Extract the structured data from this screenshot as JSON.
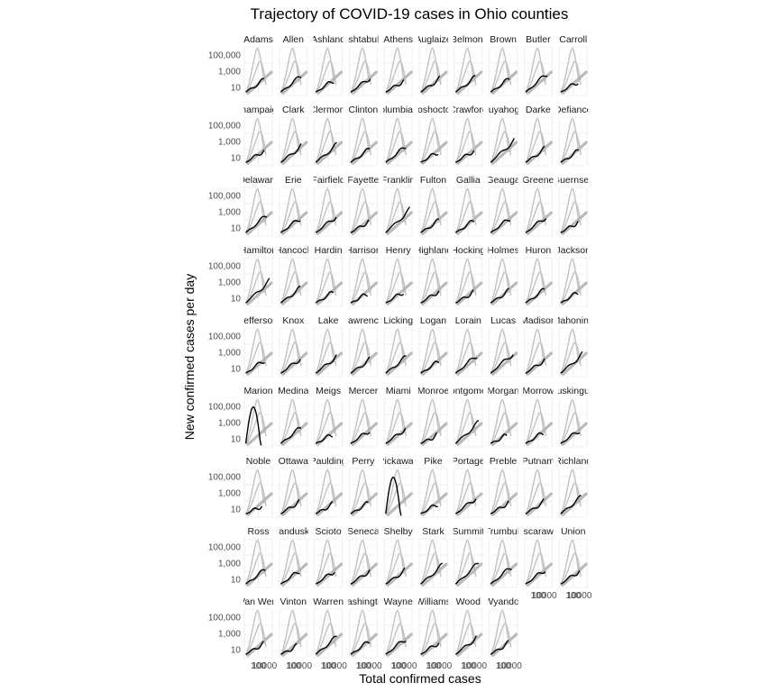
{
  "chart_data": {
    "type": "line",
    "title": "Trajectory of COVID-19 cases in Ohio counties",
    "xlabel": "Total confirmed cases",
    "ylabel": "New confirmed cases per day",
    "x_scale": "log",
    "y_scale": "log",
    "y_ticks": [
      "100,000",
      "1,000",
      "10"
    ],
    "y_tick_values": [
      100000,
      1000,
      10
    ],
    "x_tick_label": "10000",
    "x_tick_label_edge": "100",
    "xlim": [
      1,
      100000
    ],
    "ylim": [
      1,
      1000000
    ],
    "facet_cols": 10,
    "facets": [
      {
        "label": "Adams",
        "end": 0.45
      },
      {
        "label": "Allen",
        "end": 0.6
      },
      {
        "label": "Ashland",
        "end": 0.45
      },
      {
        "label": "Ashtabula",
        "end": 0.55
      },
      {
        "label": "Athens",
        "end": 0.42
      },
      {
        "label": "Auglaize",
        "end": 0.5
      },
      {
        "label": "Belmont",
        "end": 0.55
      },
      {
        "label": "Brown",
        "end": 0.5
      },
      {
        "label": "Butler",
        "end": 0.7
      },
      {
        "label": "Carroll",
        "end": 0.4
      },
      {
        "label": "Champaign",
        "end": 0.45
      },
      {
        "label": "Clark",
        "end": 0.6
      },
      {
        "label": "Clermont",
        "end": 0.65
      },
      {
        "label": "Clinton",
        "end": 0.5
      },
      {
        "label": "Columbiana",
        "end": 0.6
      },
      {
        "label": "Coshocton",
        "end": 0.4
      },
      {
        "label": "Crawford",
        "end": 0.45
      },
      {
        "label": "Cuyahoga",
        "end": 0.82
      },
      {
        "label": "Darke",
        "end": 0.5
      },
      {
        "label": "Defiance",
        "end": 0.42
      },
      {
        "label": "Delaware",
        "end": 0.65
      },
      {
        "label": "Erie",
        "end": 0.55
      },
      {
        "label": "Fairfield",
        "end": 0.62
      },
      {
        "label": "Fayette",
        "end": 0.42
      },
      {
        "label": "Franklin",
        "end": 0.85
      },
      {
        "label": "Fulton",
        "end": 0.45
      },
      {
        "label": "Gallia",
        "end": 0.45
      },
      {
        "label": "Geauga",
        "end": 0.55
      },
      {
        "label": "Greene",
        "end": 0.6
      },
      {
        "label": "Guernsey",
        "end": 0.4
      },
      {
        "label": "Hamilton",
        "end": 0.82
      },
      {
        "label": "Hancock",
        "end": 0.55
      },
      {
        "label": "Hardin",
        "end": 0.4
      },
      {
        "label": "Harrison",
        "end": 0.35
      },
      {
        "label": "Henry",
        "end": 0.42
      },
      {
        "label": "Highland",
        "end": 0.45
      },
      {
        "label": "Hocking",
        "end": 0.4
      },
      {
        "label": "Holmes",
        "end": 0.45
      },
      {
        "label": "Huron",
        "end": 0.5
      },
      {
        "label": "Jackson",
        "end": 0.4
      },
      {
        "label": "Jefferson",
        "end": 0.5
      },
      {
        "label": "Knox",
        "end": 0.55
      },
      {
        "label": "Lake",
        "end": 0.62
      },
      {
        "label": "Lawrence",
        "end": 0.5
      },
      {
        "label": "Licking",
        "end": 0.6
      },
      {
        "label": "Logan",
        "end": 0.45
      },
      {
        "label": "Lorain",
        "end": 0.68
      },
      {
        "label": "Lucas",
        "end": 0.75
      },
      {
        "label": "Madison",
        "end": 0.5
      },
      {
        "label": "Mahoning",
        "end": 0.7
      },
      {
        "label": "Marion",
        "end": 0.6
      },
      {
        "label": "Medina",
        "end": 0.6
      },
      {
        "label": "Meigs",
        "end": 0.35
      },
      {
        "label": "Mercer",
        "end": 0.5
      },
      {
        "label": "Miami",
        "end": 0.55
      },
      {
        "label": "Monroe",
        "end": 0.3
      },
      {
        "label": "Montgomery",
        "end": 0.78
      },
      {
        "label": "Morgan",
        "end": 0.3
      },
      {
        "label": "Morrow",
        "end": 0.42
      },
      {
        "label": "Muskingum",
        "end": 0.5
      },
      {
        "label": "Noble",
        "end": 0.3
      },
      {
        "label": "Ottawa",
        "end": 0.45
      },
      {
        "label": "Paulding",
        "end": 0.35
      },
      {
        "label": "Perry",
        "end": 0.4
      },
      {
        "label": "Pickaway",
        "end": 0.6
      },
      {
        "label": "Pike",
        "end": 0.38
      },
      {
        "label": "Portage",
        "end": 0.6
      },
      {
        "label": "Preble",
        "end": 0.42
      },
      {
        "label": "Putnam",
        "end": 0.45
      },
      {
        "label": "Richland",
        "end": 0.62
      },
      {
        "label": "Ross",
        "end": 0.55
      },
      {
        "label": "Sandusky",
        "end": 0.5
      },
      {
        "label": "Scioto",
        "end": 0.5
      },
      {
        "label": "Seneca",
        "end": 0.5
      },
      {
        "label": "Shelby",
        "end": 0.5
      },
      {
        "label": "Stark",
        "end": 0.7
      },
      {
        "label": "Summit",
        "end": 0.78
      },
      {
        "label": "Trumbull",
        "end": 0.65
      },
      {
        "label": "Tuscarawas",
        "end": 0.55
      },
      {
        "label": "Union",
        "end": 0.5
      },
      {
        "label": "Van Wert",
        "end": 0.4
      },
      {
        "label": "Vinton",
        "end": 0.3
      },
      {
        "label": "Warren",
        "end": 0.65
      },
      {
        "label": "Washington",
        "end": 0.5
      },
      {
        "label": "Wayne",
        "end": 0.6
      },
      {
        "label": "Williams",
        "end": 0.45
      },
      {
        "label": "Wood",
        "end": 0.62
      },
      {
        "label": "Wyandot",
        "end": 0.42
      }
    ]
  }
}
